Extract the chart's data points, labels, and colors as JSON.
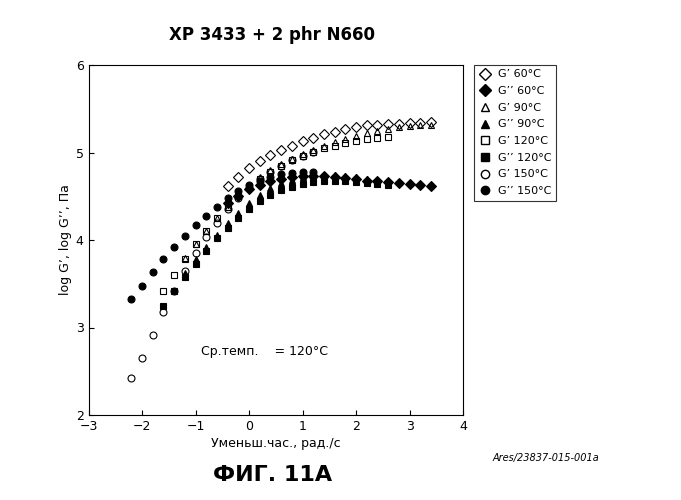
{
  "title": "XP 3433 + 2 phr N660",
  "xlabel": "Уменьш.час., рад./с",
  "ylabel": "log G’, log G’’, Па",
  "annotation": "Ср.темп.    = 120°C",
  "watermark": "Ares/23837-015-001a",
  "figure_label": "ФИГ. 11А",
  "xlim": [
    -3,
    4
  ],
  "ylim": [
    2,
    6
  ],
  "xticks": [
    -3,
    -2,
    -1,
    0,
    1,
    2,
    3,
    4
  ],
  "yticks": [
    2,
    3,
    4,
    5,
    6
  ],
  "background_color": "#ffffff",
  "plot_bg_color": "#ffffff",
  "series": {
    "G_prime_60": {
      "label": "G’ 60°C",
      "marker": "D",
      "filled": false,
      "x": [
        -0.4,
        -0.2,
        0.0,
        0.2,
        0.4,
        0.6,
        0.8,
        1.0,
        1.2,
        1.4,
        1.6,
        1.8,
        2.0,
        2.2,
        2.4,
        2.6,
        2.8,
        3.0,
        3.2,
        3.4
      ],
      "y": [
        4.62,
        4.72,
        4.82,
        4.9,
        4.97,
        5.03,
        5.08,
        5.13,
        5.17,
        5.21,
        5.24,
        5.27,
        5.29,
        5.31,
        5.32,
        5.33,
        5.33,
        5.34,
        5.34,
        5.35
      ]
    },
    "G_dprime_60": {
      "label": "G’’ 60°C",
      "marker": "D",
      "filled": true,
      "x": [
        -0.4,
        -0.2,
        0.0,
        0.2,
        0.4,
        0.6,
        0.8,
        1.0,
        1.2,
        1.4,
        1.6,
        1.8,
        2.0,
        2.2,
        2.4,
        2.6,
        2.8,
        3.0,
        3.2,
        3.4
      ],
      "y": [
        4.42,
        4.5,
        4.58,
        4.63,
        4.67,
        4.7,
        4.72,
        4.73,
        4.73,
        4.73,
        4.72,
        4.71,
        4.7,
        4.68,
        4.67,
        4.66,
        4.65,
        4.64,
        4.63,
        4.62
      ]
    },
    "G_prime_90": {
      "label": "G’ 90°C",
      "marker": "^",
      "filled": false,
      "x": [
        -1.2,
        -1.0,
        -0.8,
        -0.6,
        -0.4,
        -0.2,
        0.0,
        0.2,
        0.4,
        0.6,
        0.8,
        1.0,
        1.2,
        1.4,
        1.6,
        1.8,
        2.0,
        2.2,
        2.4,
        2.6,
        2.8,
        3.0,
        3.2,
        3.4
      ],
      "y": [
        3.8,
        3.95,
        4.1,
        4.25,
        4.38,
        4.5,
        4.62,
        4.72,
        4.8,
        4.87,
        4.93,
        4.98,
        5.03,
        5.08,
        5.12,
        5.16,
        5.19,
        5.22,
        5.25,
        5.27,
        5.29,
        5.3,
        5.31,
        5.32
      ]
    },
    "G_dprime_90": {
      "label": "G’’ 90°C",
      "marker": "^",
      "filled": true,
      "x": [
        -1.2,
        -1.0,
        -0.8,
        -0.6,
        -0.4,
        -0.2,
        0.0,
        0.2,
        0.4,
        0.6,
        0.8,
        1.0,
        1.2,
        1.4,
        1.6,
        1.8,
        2.0,
        2.2,
        2.4,
        2.6,
        2.8,
        3.0,
        3.2,
        3.4
      ],
      "y": [
        3.62,
        3.78,
        3.92,
        4.06,
        4.19,
        4.31,
        4.42,
        4.52,
        4.59,
        4.65,
        4.69,
        4.72,
        4.74,
        4.74,
        4.74,
        4.73,
        4.72,
        4.7,
        4.69,
        4.67,
        4.66,
        4.65,
        4.64,
        4.63
      ]
    },
    "G_prime_120": {
      "label": "G’ 120°C",
      "marker": "s",
      "filled": false,
      "x": [
        -1.6,
        -1.4,
        -1.2,
        -1.0,
        -0.8,
        -0.6,
        -0.4,
        -0.2,
        0.0,
        0.2,
        0.4,
        0.6,
        0.8,
        1.0,
        1.2,
        1.4,
        1.6,
        1.8,
        2.0,
        2.2,
        2.4,
        2.6
      ],
      "y": [
        3.42,
        3.6,
        3.78,
        3.95,
        4.1,
        4.25,
        4.38,
        4.5,
        4.61,
        4.7,
        4.78,
        4.85,
        4.91,
        4.96,
        5.01,
        5.05,
        5.08,
        5.11,
        5.13,
        5.15,
        5.17,
        5.18
      ]
    },
    "G_dprime_120": {
      "label": "G’’ 120°C",
      "marker": "s",
      "filled": true,
      "x": [
        -1.6,
        -1.4,
        -1.2,
        -1.0,
        -0.8,
        -0.6,
        -0.4,
        -0.2,
        0.0,
        0.2,
        0.4,
        0.6,
        0.8,
        1.0,
        1.2,
        1.4,
        1.6,
        1.8,
        2.0,
        2.2,
        2.4,
        2.6
      ],
      "y": [
        3.25,
        3.42,
        3.58,
        3.73,
        3.88,
        4.02,
        4.14,
        4.25,
        4.35,
        4.44,
        4.51,
        4.57,
        4.61,
        4.64,
        4.66,
        4.67,
        4.68,
        4.67,
        4.66,
        4.65,
        4.64,
        4.63
      ]
    },
    "G_prime_150": {
      "label": "G’ 150°C",
      "marker": "o",
      "filled": false,
      "x": [
        -2.2,
        -2.0,
        -1.8,
        -1.6,
        -1.4,
        -1.2,
        -1.0,
        -0.8,
        -0.6,
        -0.4,
        -0.2,
        0.0,
        0.2,
        0.4,
        0.6,
        0.8,
        1.0,
        1.2
      ],
      "y": [
        2.42,
        2.65,
        2.92,
        3.18,
        3.42,
        3.65,
        3.85,
        4.04,
        4.2,
        4.35,
        4.48,
        4.6,
        4.7,
        4.78,
        4.85,
        4.91,
        4.96,
        5.01
      ]
    },
    "G_dprime_150": {
      "label": "G’’ 150°C",
      "marker": "o",
      "filled": true,
      "x": [
        -2.2,
        -2.0,
        -1.8,
        -1.6,
        -1.4,
        -1.2,
        -1.0,
        -0.8,
        -0.6,
        -0.4,
        -0.2,
        0.0,
        0.2,
        0.4,
        0.6,
        0.8,
        1.0,
        1.2
      ],
      "y": [
        3.33,
        3.48,
        3.63,
        3.78,
        3.92,
        4.05,
        4.17,
        4.28,
        4.38,
        4.48,
        4.56,
        4.63,
        4.68,
        4.72,
        4.75,
        4.77,
        4.78,
        4.78
      ]
    }
  },
  "legend_entries": [
    {
      "label": "G’ 60°C",
      "marker": "D",
      "filled": false
    },
    {
      "label": "G’’ 60°C",
      "marker": "D",
      "filled": true
    },
    {
      "label": "G’ 90°C",
      "marker": "^",
      "filled": false
    },
    {
      "label": "G’’ 90°C",
      "marker": "^",
      "filled": true
    },
    {
      "label": "G’ 120°C",
      "marker": "s",
      "filled": false
    },
    {
      "label": "G’’ 120°C",
      "marker": "s",
      "filled": true
    },
    {
      "label": "G’ 150°C",
      "marker": "o",
      "filled": false
    },
    {
      "label": "G’’ 150°C",
      "marker": "o",
      "filled": true
    }
  ]
}
